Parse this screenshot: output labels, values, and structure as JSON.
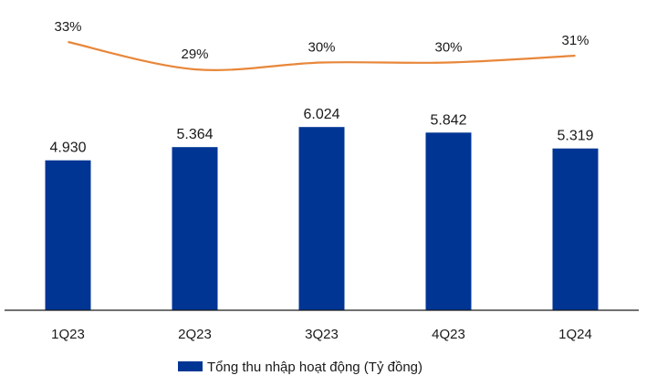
{
  "chart_data": {
    "type": "bar",
    "title": "",
    "xlabel": "",
    "ylabel": "",
    "categories": [
      "1Q23",
      "2Q23",
      "3Q23",
      "4Q23",
      "1Q24"
    ],
    "series": [
      {
        "name": "Tổng thu nhập hoạt động (Tỷ đồng)",
        "type": "bar",
        "values": [
          4930,
          5364,
          6024,
          5842,
          5319
        ],
        "labels": [
          "4.930",
          "5.364",
          "6.024",
          "5.842",
          "5.319"
        ],
        "color": "#003594"
      },
      {
        "type": "line",
        "values": [
          33,
          29,
          30,
          30,
          31
        ],
        "labels": [
          "33%",
          "29%",
          "30%",
          "30%",
          "31%"
        ],
        "color": "#E8873A"
      }
    ],
    "ylim": [
      0,
      8400
    ],
    "grid": false,
    "legend_position": "bottom"
  }
}
